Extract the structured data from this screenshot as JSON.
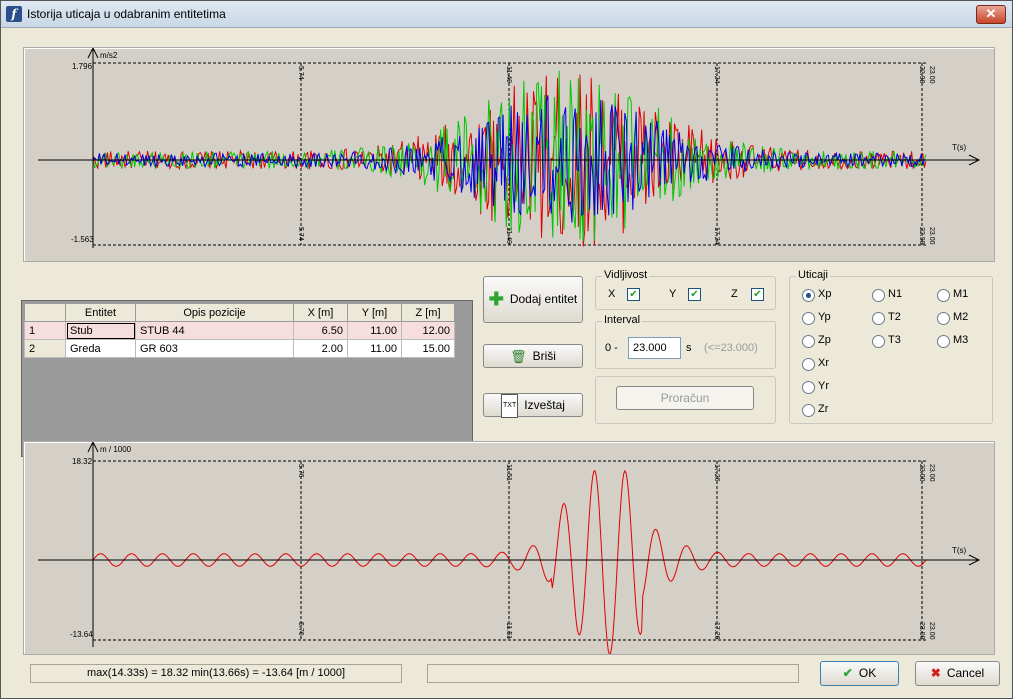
{
  "window": {
    "title": "Istorija uticaja u odabranim entitetima",
    "close_label": "✕"
  },
  "chart_top": {
    "yunit": "m/s2",
    "ymax_label": "1.796",
    "ymin_label": "-1.563",
    "xaxis_label": "T(s)",
    "markers": [
      "5.74",
      "11.49",
      "17.24",
      "22.98",
      "23.00"
    ]
  },
  "chart_bottom": {
    "yunit": "m / 1000",
    "ymax_label": "18.32",
    "ymin_label": "-13.64",
    "xaxis_label": "T(s)",
    "markers": [
      "5.76",
      "11.51",
      "17.26",
      "23.00",
      "23.00"
    ]
  },
  "chart_data": [
    {
      "type": "line",
      "title": "",
      "xlabel": "T(s)",
      "ylabel": "m/s2",
      "xlim": [
        0,
        23.0
      ],
      "ylim": [
        -1.563,
        1.796
      ],
      "series": [
        {
          "color": "#e00000"
        },
        {
          "color": "#00c800"
        },
        {
          "color": "#0000e6"
        }
      ]
    },
    {
      "type": "line",
      "title": "",
      "xlabel": "T(s)",
      "ylabel": "m / 1000",
      "xlim": [
        0,
        23.0
      ],
      "ylim": [
        -13.64,
        18.32
      ],
      "series": [
        {
          "color": "#e00000"
        }
      ]
    }
  ],
  "table": {
    "headers": [
      "",
      "Entitet",
      "Opis pozicije",
      "X [m]",
      "Y [m]",
      "Z [m]"
    ],
    "rows": [
      {
        "n": "1",
        "entitet": "Stub",
        "opis": "STUB 44",
        "x": "6.50",
        "y": "11.00",
        "z": "12.00"
      },
      {
        "n": "2",
        "entitet": "Greda",
        "opis": "GR 603",
        "x": "2.00",
        "y": "11.00",
        "z": "15.00"
      }
    ]
  },
  "buttons": {
    "add": "Dodaj entitet",
    "delete": "Briši",
    "report": "Izveštaj",
    "calc": "Proračun",
    "ok": "OK",
    "cancel": "Cancel",
    "report_icon_text": "TXT"
  },
  "visibility": {
    "title": "Vidljivost",
    "x": "X",
    "y": "Y",
    "z": "Z"
  },
  "interval": {
    "title": "Interval",
    "prefix": "0 -",
    "value": "23.000",
    "unit": "s",
    "hint": "(<=23.000)"
  },
  "uticaji": {
    "title": "Uticaji",
    "col1": [
      "Xp",
      "Yp",
      "Zp",
      "Xr",
      "Yr",
      "Zr"
    ],
    "col2": [
      "N1",
      "T2",
      "T3"
    ],
    "col3": [
      "M1",
      "M2",
      "M3"
    ],
    "selected": "Xp"
  },
  "status": {
    "left": "max(14.33s) = 18.32  min(13.66s) = -13.64 [m / 1000]",
    "right": ""
  },
  "colors": {
    "accent_red": "#e00000",
    "green": "#00c800",
    "blue": "#0000e6"
  }
}
